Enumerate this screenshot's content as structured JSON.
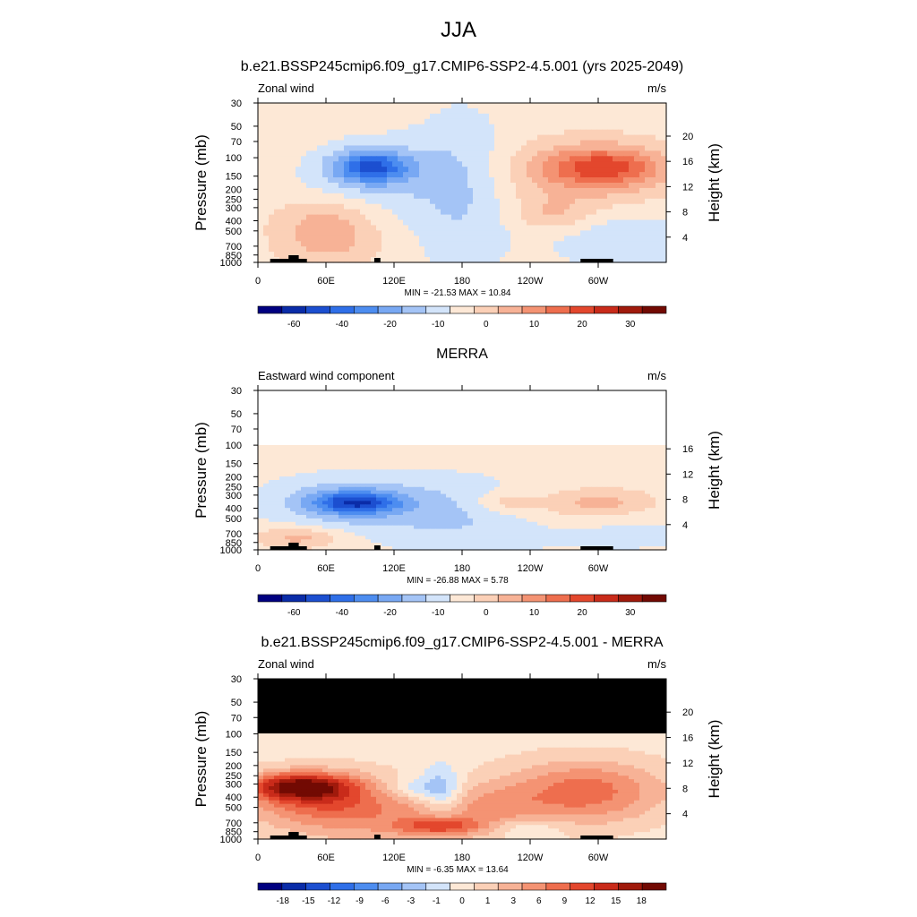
{
  "page": {
    "title": "JJA"
  },
  "chart_data": [
    {
      "type": "heatmap",
      "title": "b.e21.BSSP245cmip6.f09_g17.CMIP6-SSP2-4.5.001 (yrs 2025-2049)",
      "left_label": "Zonal wind",
      "units": "m/s",
      "ylabel": "Pressure (mb)",
      "ylabel_right": "Height (km)",
      "x_ticks": [
        "0",
        "60E",
        "120E",
        "180",
        "120W",
        "60W"
      ],
      "y_ticks": [
        "30",
        "50",
        "70",
        "100",
        "150",
        "200",
        "250",
        "300",
        "400",
        "500",
        "700",
        "850",
        "1000"
      ],
      "y_ticks_right": [
        "20",
        "16",
        "12",
        "8",
        "4"
      ],
      "ylim": [
        1000,
        30
      ],
      "stats": "MIN = -21.53  MAX =  10.84",
      "colorbar": {
        "labels": [
          "-60",
          "-40",
          "-20",
          "-10",
          "0",
          "10",
          "20",
          "30"
        ],
        "colors": [
          "#000080",
          "#0a2ca8",
          "#1c4fd0",
          "#2f6fe8",
          "#4d8df0",
          "#78a8f3",
          "#a4c4f6",
          "#d3e4fa",
          "#fde8d6",
          "#fbd0b7",
          "#f7b296",
          "#f49373",
          "#ee6e4e",
          "#e3472d",
          "#c92b1a",
          "#a01a0c",
          "#720a03"
        ]
      },
      "fields": {
        "min": -21.53,
        "max": 10.84,
        "blobs_note": "features: jet cores near 150 mb"
      }
    },
    {
      "type": "heatmap",
      "title": "MERRA",
      "left_label": "Eastward wind component",
      "units": "m/s",
      "ylabel": "Pressure (mb)",
      "ylabel_right": "Height (km)",
      "x_ticks": [
        "0",
        "60E",
        "120E",
        "180",
        "120W",
        "60W"
      ],
      "y_ticks": [
        "30",
        "50",
        "70",
        "100",
        "150",
        "200",
        "250",
        "300",
        "400",
        "500",
        "700",
        "850",
        "1000"
      ],
      "y_ticks_right": [
        "16",
        "12",
        "8",
        "4"
      ],
      "ylim": [
        1000,
        30
      ],
      "stats": "MIN = -26.88  MAX =   5.78",
      "colorbar": {
        "labels": [
          "-60",
          "-40",
          "-20",
          "-10",
          "0",
          "10",
          "20",
          "30"
        ],
        "colors": [
          "#000080",
          "#0a2ca8",
          "#1c4fd0",
          "#2f6fe8",
          "#4d8df0",
          "#78a8f3",
          "#a4c4f6",
          "#d3e4fa",
          "#fde8d6",
          "#fbd0b7",
          "#f7b296",
          "#f49373",
          "#ee6e4e",
          "#e3472d",
          "#c92b1a",
          "#a01a0c",
          "#720a03"
        ]
      },
      "fields": {
        "min": -26.88,
        "max": 5.78
      }
    },
    {
      "type": "heatmap",
      "title": "b.e21.BSSP245cmip6.f09_g17.CMIP6-SSP2-4.5.001 - MERRA",
      "left_label": "Zonal wind",
      "units": "m/s",
      "ylabel": "Pressure (mb)",
      "ylabel_right": "Height (km)",
      "x_ticks": [
        "0",
        "60E",
        "120E",
        "180",
        "120W",
        "60W"
      ],
      "y_ticks": [
        "30",
        "50",
        "70",
        "100",
        "150",
        "200",
        "250",
        "300",
        "400",
        "500",
        "700",
        "850",
        "1000"
      ],
      "y_ticks_right": [
        "20",
        "16",
        "12",
        "8",
        "4"
      ],
      "ylim": [
        1000,
        30
      ],
      "stats": "MIN = -6.35  MAX =  13.64",
      "colorbar": {
        "labels": [
          "-18",
          "-15",
          "-12",
          "-9",
          "-6",
          "-3",
          "-1",
          "0",
          "1",
          "3",
          "6",
          "9",
          "12",
          "15",
          "18"
        ],
        "colors": [
          "#000080",
          "#0a2ca8",
          "#1c4fd0",
          "#2f6fe8",
          "#4d8df0",
          "#78a8f3",
          "#a4c4f6",
          "#d3e4fa",
          "#fde8d6",
          "#fbd0b7",
          "#f7b296",
          "#f49373",
          "#ee6e4e",
          "#e3472d",
          "#c92b1a",
          "#a01a0c",
          "#720a03"
        ]
      },
      "fields": {
        "min": -6.35,
        "max": 13.64
      }
    }
  ]
}
